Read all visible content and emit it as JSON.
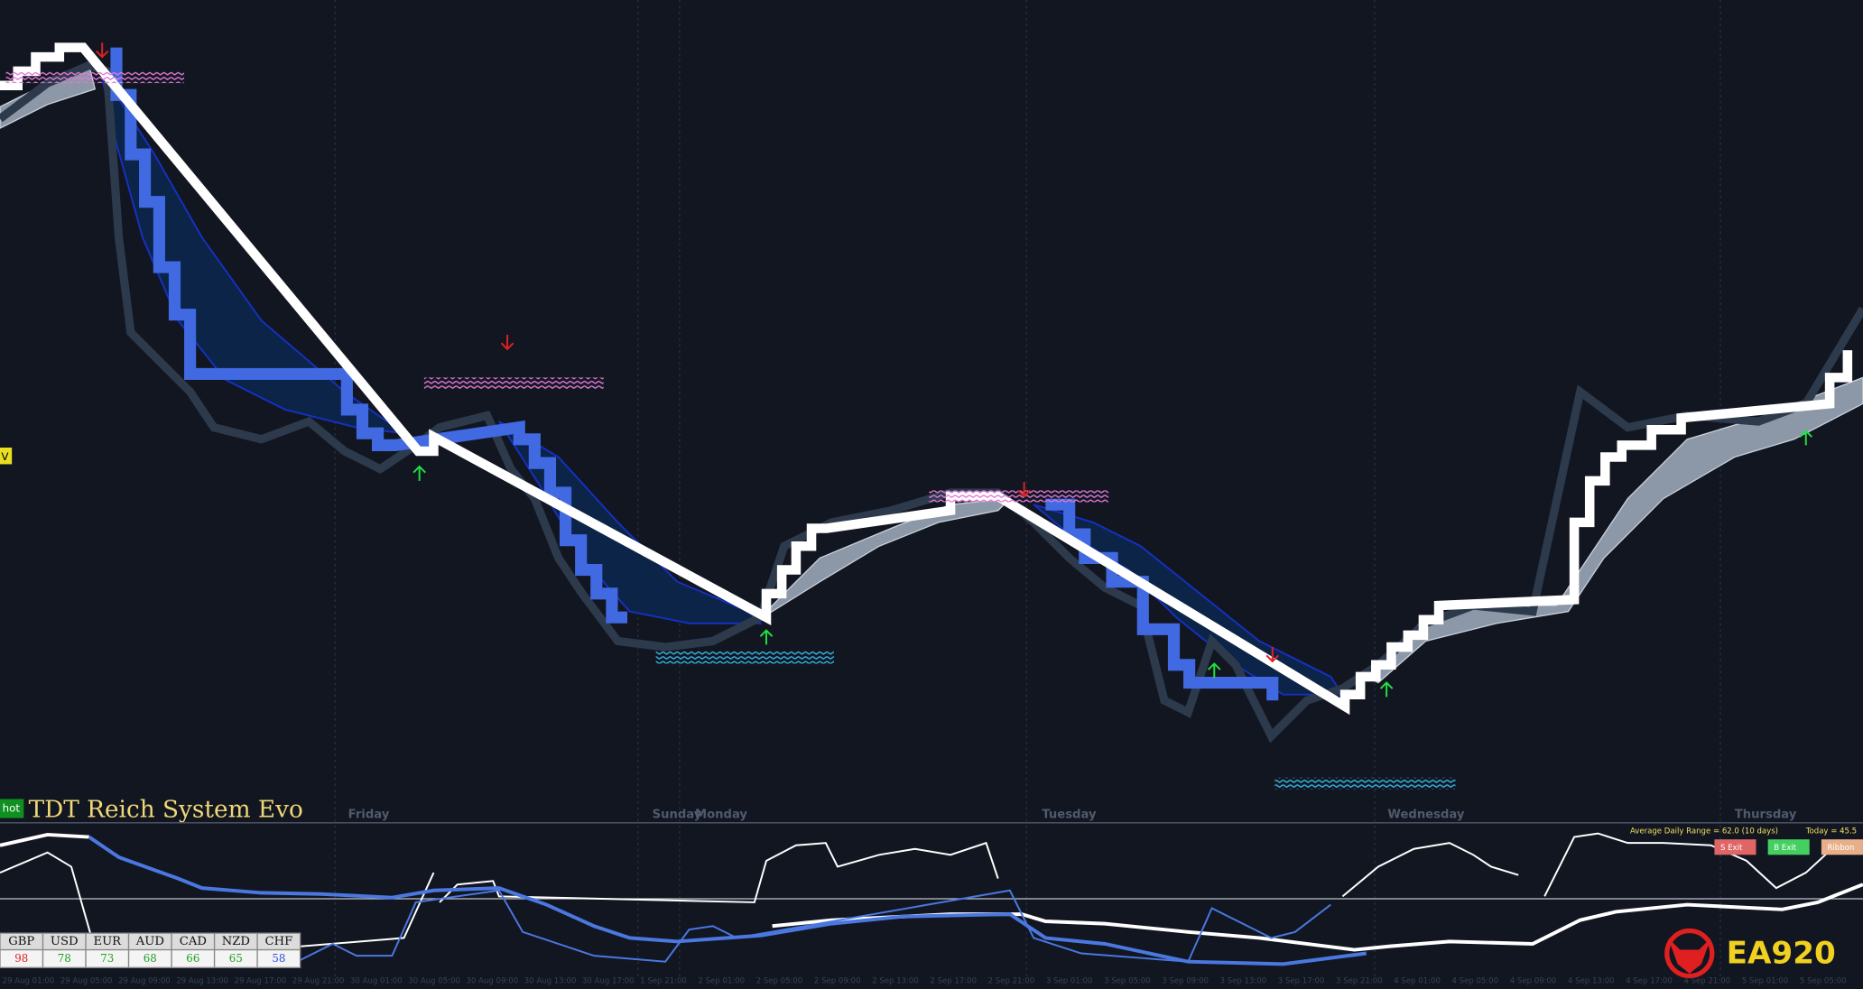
{
  "badge": "hot",
  "title": "TDT Reich System Evo",
  "side_marker": "V",
  "day_labels": [
    "Friday",
    "Sunday",
    "Monday",
    "Tuesday",
    "Wednesday",
    "Thursday"
  ],
  "time_labels": [
    "29 Aug 01:00",
    "29 Aug 05:00",
    "29 Aug 09:00",
    "29 Aug 13:00",
    "29 Aug 17:00",
    "29 Aug 21:00",
    "30 Aug 01:00",
    "30 Aug 05:00",
    "30 Aug 09:00",
    "30 Aug 13:00",
    "30 Aug 17:00",
    "1 Sep 21:00",
    "2 Sep 01:00",
    "2 Sep 05:00",
    "2 Sep 09:00",
    "2 Sep 13:00",
    "2 Sep 17:00",
    "2 Sep 21:00",
    "3 Sep 01:00",
    "3 Sep 05:00",
    "3 Sep 09:00",
    "3 Sep 13:00",
    "3 Sep 17:00",
    "3 Sep 21:00",
    "4 Sep 01:00",
    "4 Sep 05:00",
    "4 Sep 09:00",
    "4 Sep 13:00",
    "4 Sep 17:00",
    "4 Sep 21:00",
    "5 Sep 01:00",
    "5 Sep 05:00"
  ],
  "currency_strength": {
    "currencies": [
      "GBP",
      "USD",
      "EUR",
      "AUD",
      "CAD",
      "NZD",
      "CHF"
    ],
    "values": [
      98,
      78,
      73,
      68,
      66,
      65,
      58
    ]
  },
  "adr": {
    "average": "Average Daily Range = 62.0 (10 days)",
    "today": "Today = 45.5"
  },
  "buttons": [
    "S Exit",
    "B Exit",
    "Ribbon"
  ],
  "logo": "EA920"
}
